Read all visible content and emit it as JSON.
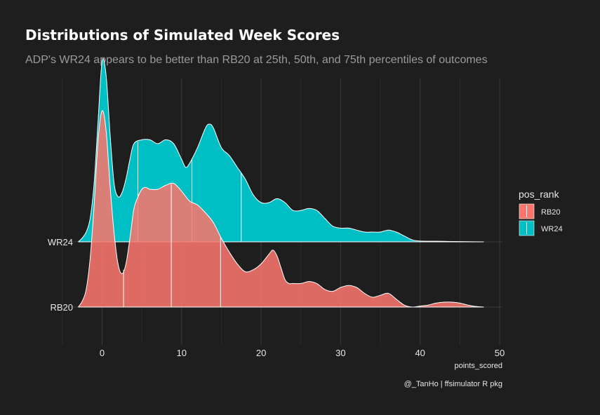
{
  "chart_data": {
    "type": "ridgeline-density",
    "title": "Distributions of Simulated Week Scores",
    "subtitle": "ADP's WR24 appears to be better than RB20 at 25th, 50th, and 75th percentiles of outcomes",
    "xlabel": "points_scored",
    "caption": "@_TanHo | ffsimulator R pkg",
    "xlim": [
      -5,
      50
    ],
    "x_ticks": [
      0,
      10,
      20,
      30,
      40,
      50
    ],
    "x_tick_labels": [
      "0",
      "10",
      "20",
      "30",
      "40",
      "50"
    ],
    "categories": [
      "RB20",
      "WR24"
    ],
    "grid": true,
    "legend": {
      "title": "pos_rank",
      "position": "right"
    },
    "series": [
      {
        "name": "RB20",
        "color": "#F8766D",
        "quantiles": [
          2.7,
          8.7,
          14.9
        ],
        "points": [
          [
            -3,
            0
          ],
          [
            -2.5,
            0.03
          ],
          [
            -2,
            0.09
          ],
          [
            -1.5,
            0.25
          ],
          [
            -1,
            0.52
          ],
          [
            -0.5,
            0.85
          ],
          [
            0,
            1.0
          ],
          [
            0.5,
            0.9
          ],
          [
            1,
            0.62
          ],
          [
            1.5,
            0.38
          ],
          [
            2,
            0.22
          ],
          [
            2.5,
            0.17
          ],
          [
            3,
            0.22
          ],
          [
            3.5,
            0.35
          ],
          [
            4,
            0.5
          ],
          [
            4.5,
            0.56
          ],
          [
            5,
            0.6
          ],
          [
            5.5,
            0.61
          ],
          [
            6,
            0.6
          ],
          [
            7,
            0.6
          ],
          [
            8,
            0.62
          ],
          [
            9,
            0.63
          ],
          [
            10,
            0.59
          ],
          [
            11,
            0.54
          ],
          [
            12,
            0.52
          ],
          [
            13,
            0.48
          ],
          [
            14,
            0.43
          ],
          [
            15,
            0.35
          ],
          [
            16,
            0.28
          ],
          [
            17,
            0.22
          ],
          [
            18,
            0.18
          ],
          [
            19,
            0.19
          ],
          [
            20,
            0.22
          ],
          [
            21,
            0.27
          ],
          [
            21.5,
            0.29
          ],
          [
            22,
            0.26
          ],
          [
            22.5,
            0.2
          ],
          [
            23,
            0.14
          ],
          [
            23.5,
            0.12
          ],
          [
            24,
            0.12
          ],
          [
            25,
            0.12
          ],
          [
            26,
            0.13
          ],
          [
            27,
            0.12
          ],
          [
            28,
            0.09
          ],
          [
            29,
            0.08
          ],
          [
            30,
            0.1
          ],
          [
            31,
            0.11
          ],
          [
            32,
            0.1
          ],
          [
            33,
            0.07
          ],
          [
            34,
            0.05
          ],
          [
            35,
            0.06
          ],
          [
            36,
            0.07
          ],
          [
            37,
            0.04
          ],
          [
            38,
            0.01
          ],
          [
            39,
            0.0
          ],
          [
            40,
            0.005
          ],
          [
            41,
            0.01
          ],
          [
            42,
            0.02
          ],
          [
            43,
            0.025
          ],
          [
            44,
            0.025
          ],
          [
            45,
            0.02
          ],
          [
            46,
            0.01
          ],
          [
            47,
            0.003
          ],
          [
            48,
            0.0
          ]
        ]
      },
      {
        "name": "WR24",
        "color": "#00BFC4",
        "quantiles": [
          4.5,
          11.3,
          17.5
        ],
        "points": [
          [
            -3,
            0
          ],
          [
            -2.5,
            0.02
          ],
          [
            -2,
            0.05
          ],
          [
            -1.5,
            0.12
          ],
          [
            -1,
            0.3
          ],
          [
            -0.5,
            0.62
          ],
          [
            0,
            0.92
          ],
          [
            0.5,
            0.85
          ],
          [
            1,
            0.55
          ],
          [
            1.5,
            0.3
          ],
          [
            2,
            0.23
          ],
          [
            2.5,
            0.25
          ],
          [
            3,
            0.32
          ],
          [
            3.5,
            0.42
          ],
          [
            4,
            0.5
          ],
          [
            5,
            0.52
          ],
          [
            6,
            0.52
          ],
          [
            7,
            0.5
          ],
          [
            8,
            0.52
          ],
          [
            9,
            0.5
          ],
          [
            10,
            0.42
          ],
          [
            10.5,
            0.38
          ],
          [
            11,
            0.4
          ],
          [
            12,
            0.48
          ],
          [
            13,
            0.58
          ],
          [
            13.5,
            0.6
          ],
          [
            14,
            0.58
          ],
          [
            15,
            0.48
          ],
          [
            16,
            0.44
          ],
          [
            17,
            0.38
          ],
          [
            18,
            0.32
          ],
          [
            19,
            0.24
          ],
          [
            20,
            0.2
          ],
          [
            21,
            0.2
          ],
          [
            22,
            0.22
          ],
          [
            23,
            0.2
          ],
          [
            24,
            0.16
          ],
          [
            25,
            0.16
          ],
          [
            26,
            0.17
          ],
          [
            27,
            0.16
          ],
          [
            28,
            0.12
          ],
          [
            29,
            0.08
          ],
          [
            30,
            0.07
          ],
          [
            31,
            0.07
          ],
          [
            32,
            0.06
          ],
          [
            33,
            0.05
          ],
          [
            34,
            0.05
          ],
          [
            35,
            0.05
          ],
          [
            36,
            0.06
          ],
          [
            37,
            0.05
          ],
          [
            38,
            0.03
          ],
          [
            39,
            0.01
          ],
          [
            40,
            0.004
          ],
          [
            42,
            0.003
          ],
          [
            44,
            0.002
          ],
          [
            46,
            0.001
          ],
          [
            48,
            0.0
          ]
        ]
      }
    ]
  }
}
